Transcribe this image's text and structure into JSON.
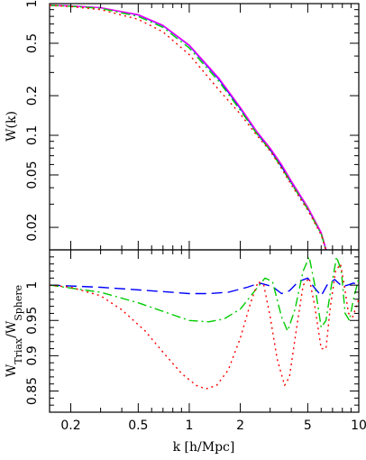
{
  "chart_data": [
    {
      "type": "line",
      "panel": "top",
      "title": "",
      "xlabel": "",
      "ylabel": "W(k)",
      "xscale": "log",
      "yscale": "log",
      "xlim": [
        0.15,
        10
      ],
      "ylim": [
        0.0135,
        1.0
      ],
      "yticks": [
        1,
        0.5,
        0.2,
        0.1,
        0.05,
        0.02
      ],
      "ytick_labels": [
        "1",
        "0.5",
        "0.2",
        "0.1",
        "0.05",
        "0.02"
      ],
      "grid": false,
      "series": [
        {
          "color": "#0000ff",
          "style": "solid",
          "x": [
            0.15,
            0.2,
            0.3,
            0.5,
            0.7,
            1.0,
            1.5,
            2.0,
            2.5,
            3.0,
            3.5,
            4.0,
            5.0,
            6.0,
            6.4
          ],
          "y": [
            0.97,
            0.96,
            0.93,
            0.82,
            0.68,
            0.48,
            0.265,
            0.16,
            0.105,
            0.078,
            0.058,
            0.044,
            0.028,
            0.018,
            0.0135
          ]
        },
        {
          "color": "#ff00ff",
          "style": "solid",
          "x": [
            0.15,
            0.2,
            0.3,
            0.5,
            0.7,
            1.0,
            1.5,
            2.0,
            2.5,
            3.0,
            3.5,
            4.0,
            5.0,
            6.0,
            6.4
          ],
          "y": [
            0.97,
            0.96,
            0.93,
            0.825,
            0.685,
            0.485,
            0.27,
            0.163,
            0.107,
            0.08,
            0.06,
            0.045,
            0.0285,
            0.0183,
            0.0137
          ]
        },
        {
          "color": "#00cc00",
          "style": "dash-dot",
          "x": [
            0.15,
            0.2,
            0.3,
            0.5,
            0.7,
            1.0,
            1.5,
            2.0,
            2.5,
            3.0,
            3.5,
            4.0,
            5.0,
            6.0,
            6.4
          ],
          "y": [
            0.97,
            0.955,
            0.92,
            0.8,
            0.66,
            0.46,
            0.255,
            0.155,
            0.103,
            0.077,
            0.057,
            0.043,
            0.0275,
            0.0178,
            0.0134
          ]
        },
        {
          "color": "#ff0000",
          "style": "dotted",
          "x": [
            0.15,
            0.2,
            0.3,
            0.5,
            0.7,
            1.0,
            1.5,
            2.0,
            2.5,
            3.0,
            3.5,
            4.0,
            5.0,
            6.0,
            6.4
          ],
          "y": [
            0.97,
            0.95,
            0.9,
            0.76,
            0.61,
            0.41,
            0.22,
            0.145,
            0.1,
            0.076,
            0.056,
            0.042,
            0.027,
            0.0175,
            0.0133
          ]
        }
      ]
    },
    {
      "type": "line",
      "panel": "bottom",
      "title": "",
      "xlabel": "k [h/Mpc]",
      "ylabel": "W_Triax/W_Sphere",
      "ylabel_main": "W",
      "ylabel_sub1": "Triax",
      "ylabel_sep": "/W",
      "ylabel_sub2": "Sphere",
      "xscale": "log",
      "xlim": [
        0.15,
        10
      ],
      "ylim": [
        0.82,
        1.05
      ],
      "xticks": [
        0.2,
        0.5,
        1,
        2,
        5,
        10
      ],
      "xtick_labels": [
        "0.2",
        "0.5",
        "1",
        "2",
        "5",
        "10"
      ],
      "yticks": [
        1,
        0.95,
        0.9,
        0.85
      ],
      "ytick_labels": [
        "1",
        "0.95",
        "0.9",
        "0.85"
      ],
      "grid": false,
      "series": [
        {
          "color": "#0000ff",
          "style": "dashed",
          "x": [
            0.15,
            0.3,
            0.6,
            1.0,
            1.3,
            1.7,
            2.2,
            2.6,
            3.1,
            3.5,
            3.9,
            4.4,
            5.0,
            5.4,
            6.0,
            6.5,
            7.2,
            8.0,
            8.6,
            9.3,
            10.0
          ],
          "y": [
            1.0,
            0.997,
            0.992,
            0.988,
            0.988,
            0.99,
            0.997,
            1.003,
            0.998,
            0.988,
            0.992,
            1.005,
            1.01,
            0.998,
            0.985,
            1.0,
            1.008,
            0.998,
            1.0,
            1.003,
            1.0
          ]
        },
        {
          "color": "#00cc00",
          "style": "dash-dot",
          "x": [
            0.15,
            0.3,
            0.5,
            0.8,
            1.0,
            1.3,
            1.6,
            2.0,
            2.4,
            2.8,
            3.1,
            3.5,
            3.8,
            4.2,
            4.7,
            5.1,
            5.5,
            6.0,
            6.4,
            6.9,
            7.4,
            7.9,
            8.3,
            8.8,
            9.3,
            10.0
          ],
          "y": [
            1.0,
            0.99,
            0.975,
            0.958,
            0.95,
            0.948,
            0.952,
            0.966,
            0.99,
            1.01,
            1.005,
            0.955,
            0.935,
            0.965,
            1.02,
            1.04,
            1.0,
            0.94,
            0.95,
            1.0,
            1.04,
            1.02,
            0.96,
            0.95,
            0.98,
            1.01
          ]
        },
        {
          "color": "#ff0000",
          "style": "dotted",
          "x": [
            0.15,
            0.2,
            0.3,
            0.4,
            0.55,
            0.7,
            0.9,
            1.1,
            1.25,
            1.45,
            1.7,
            2.0,
            2.3,
            2.55,
            2.75,
            3.0,
            3.3,
            3.65,
            3.9,
            4.3,
            4.7,
            5.1,
            5.5,
            6.0,
            6.4,
            6.8,
            7.3,
            7.8,
            8.2,
            8.7,
            9.2,
            10.0
          ],
          "y": [
            1.0,
            0.997,
            0.985,
            0.965,
            0.935,
            0.905,
            0.875,
            0.858,
            0.853,
            0.858,
            0.88,
            0.925,
            0.975,
            1.005,
            1.0,
            0.955,
            0.895,
            0.858,
            0.87,
            0.94,
            1.0,
            1.01,
            0.97,
            0.91,
            0.91,
            0.97,
            1.02,
            1.03,
            1.0,
            0.96,
            0.955,
            0.98
          ]
        }
      ]
    }
  ]
}
